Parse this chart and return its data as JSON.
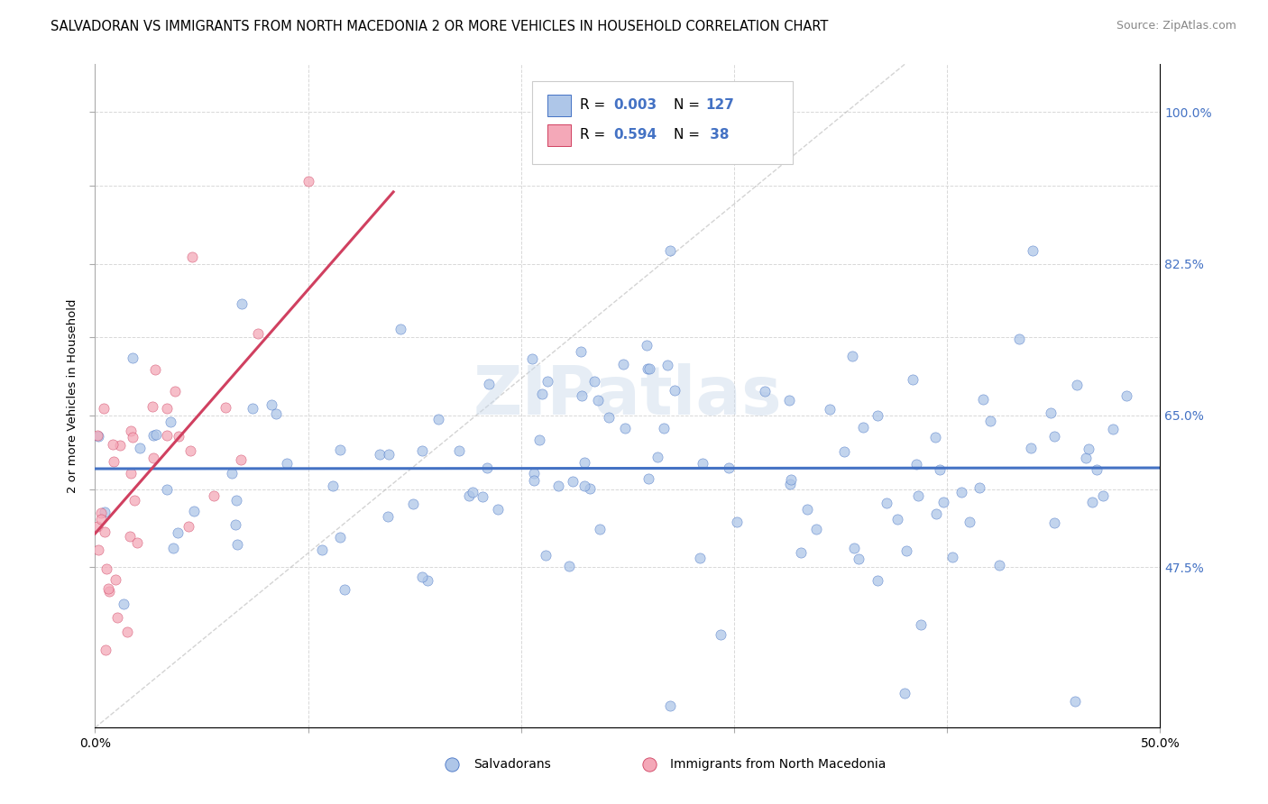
{
  "title": "SALVADORAN VS IMMIGRANTS FROM NORTH MACEDONIA 2 OR MORE VEHICLES IN HOUSEHOLD CORRELATION CHART",
  "source": "Source: ZipAtlas.com",
  "ylabel": "2 or more Vehicles in Household",
  "color_blue": "#aec6e8",
  "color_pink": "#f4a8b8",
  "line_blue": "#4472c4",
  "line_pink": "#d04060",
  "line_diag": "#b0b0b0",
  "watermark": "ZIPatlas",
  "legend_label1": "Salvadorans",
  "legend_label2": "Immigrants from North Macedonia",
  "title_fontsize": 10.5,
  "source_fontsize": 9,
  "scatter_alpha": 0.75,
  "scatter_size": 65,
  "R_blue": 0.003,
  "N_blue": 127,
  "R_pink": 0.594,
  "N_pink": 38,
  "xmin": 0.0,
  "xmax": 0.5,
  "ymin": 0.29,
  "ymax": 1.055,
  "ytick_vals": [
    0.475,
    0.565,
    0.65,
    0.74,
    0.825,
    0.915,
    1.0
  ],
  "ytick_labs": [
    "47.5%",
    "",
    "65.0%",
    "",
    "82.5%",
    "",
    "100.0%"
  ],
  "xtick_vals": [
    0.0,
    0.1,
    0.2,
    0.3,
    0.4,
    0.5
  ],
  "xtick_labs": [
    "0.0%",
    "",
    "",
    "",
    "",
    "50.0%"
  ]
}
